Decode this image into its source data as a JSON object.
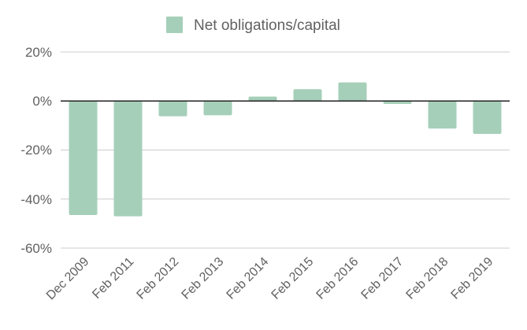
{
  "chart_data": {
    "type": "bar",
    "categories": [
      "Dec 2009",
      "Feb 2011",
      "Feb 2012",
      "Feb 2013",
      "Feb 2014",
      "Feb 2015",
      "Feb 2016",
      "Feb 2017",
      "Feb 2018",
      "Feb 2019"
    ],
    "series": [
      {
        "name": "Net obligations/capital",
        "values": [
          -46.5,
          -47.0,
          -6.2,
          -5.8,
          1.8,
          4.8,
          7.6,
          -1.2,
          -11.2,
          -13.4
        ],
        "color": "#a5cfb9"
      }
    ],
    "yticks": [
      "20%",
      "0%",
      "-20%",
      "-40%",
      "-60%"
    ],
    "ylim": [
      -60,
      20
    ],
    "grid": true,
    "zero_line": true,
    "legend_position": "top-center",
    "gridline_color": "#cccccc",
    "axis_color": "#222222",
    "text_color": "#616161"
  }
}
